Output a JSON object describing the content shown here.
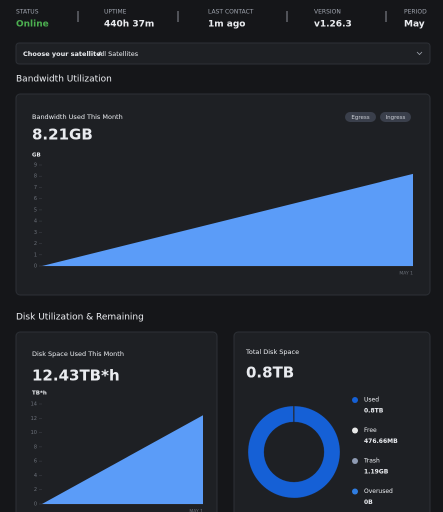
{
  "status_bar": [
    {
      "label": "STATUS",
      "value": "Online"
    },
    {
      "label": "UPTIME",
      "value": "440h 37m"
    },
    {
      "label": "LAST CONTACT",
      "value": "1m ago"
    },
    {
      "label": "VERSION",
      "value": "v1.26.3"
    },
    {
      "label": "PERIOD",
      "value": "May"
    }
  ],
  "satellite": {
    "label": "Choose your satellite:",
    "value": "All Satellites"
  },
  "sections": [
    "Bandwidth Utilization",
    "Disk Utilization & Remaining"
  ],
  "chart_data": [
    {
      "type": "area",
      "title": "Bandwidth Used This Month",
      "total": "8.21GB",
      "unit": "GB",
      "buttons": [
        "Egress",
        "Ingress"
      ],
      "categories": [
        null,
        "MAY 1"
      ],
      "values": [
        0,
        8.21
      ],
      "color": "#5b9cf8",
      "ylim": [
        0,
        9
      ],
      "yticks": [
        0,
        1,
        2,
        3,
        4,
        5,
        6,
        7,
        8,
        9
      ]
    },
    {
      "type": "area",
      "title": "Disk Space Used This Month",
      "total": "12.43TB*h",
      "unit": "TB*h",
      "categories": [
        null,
        "MAY 1"
      ],
      "values": [
        0,
        12.43
      ],
      "color": "#5b9cf8",
      "ylim": [
        0,
        14
      ],
      "yticks": [
        0,
        2,
        4,
        6,
        8,
        10,
        12,
        14
      ]
    },
    {
      "type": "donut",
      "title": "Total Disk Space",
      "total": "0.8TB",
      "categories": [
        "Used",
        "Free",
        "Trash",
        "Overused"
      ],
      "values": [
        800,
        0.47666,
        1.19,
        0
      ],
      "value_labels": [
        "0.8TB",
        "476.66MB",
        "1.19GB",
        "0B"
      ],
      "colors": [
        "#1560d6",
        "#e8e8e8",
        "#8f9bb3",
        "#2f7de1"
      ]
    }
  ]
}
